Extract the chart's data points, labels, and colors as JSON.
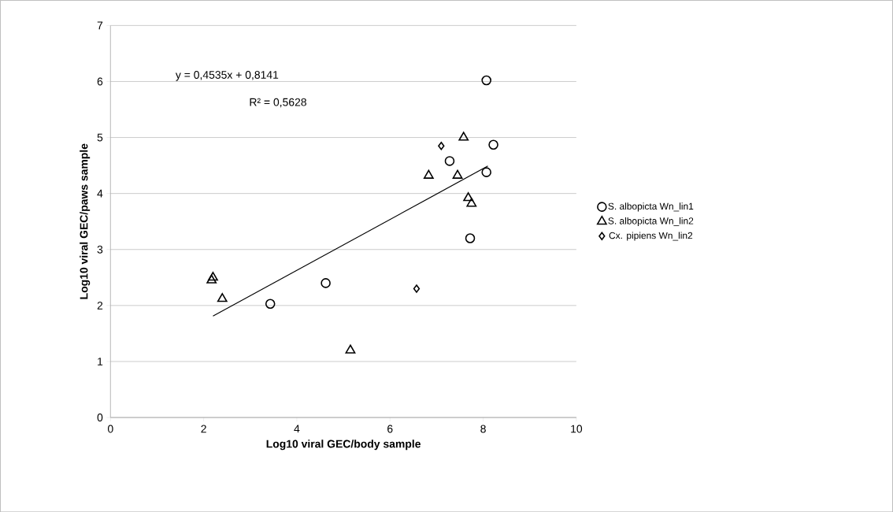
{
  "chart_data": {
    "type": "scatter",
    "xlabel": "Log10 viral GEC/body sample",
    "ylabel": "Log10 viral GEC/paws sample",
    "xlim": [
      0,
      10
    ],
    "ylim": [
      0,
      7
    ],
    "xticks": [
      0,
      2,
      4,
      6,
      8,
      10
    ],
    "yticks": [
      0,
      1,
      2,
      3,
      4,
      5,
      6,
      7
    ],
    "grid": "y",
    "legend": "right",
    "annotations": [
      "y = 0,4535x + 0,8141",
      "R² = 0,5628"
    ],
    "series": [
      {
        "name": "S. albopicta Wn_lin1",
        "color": "#000000",
        "marker": "circle",
        "x": [
          3.43,
          4.62,
          7.28,
          7.72,
          8.07,
          8.22,
          8.07
        ],
        "values": [
          2.03,
          2.4,
          4.58,
          3.2,
          4.38,
          4.87,
          6.02
        ]
      },
      {
        "name": "S. albopicta Wn_lin2",
        "color": "#000000",
        "marker": "triangle",
        "x": [
          2.17,
          2.2,
          2.4,
          5.15,
          6.83,
          7.45,
          7.58,
          7.68,
          7.75
        ],
        "values": [
          2.45,
          2.5,
          2.12,
          1.2,
          4.32,
          4.32,
          5.0,
          3.92,
          3.82
        ]
      },
      {
        "name": "Cx. pipiens Wn_lin2",
        "color": "#000000",
        "marker": "diamond",
        "x": [
          6.57,
          7.1
        ],
        "values": [
          2.3,
          4.85
        ]
      },
      {
        "type": "line",
        "color": "#000000",
        "marker": "none",
        "x": [
          2.2,
          8.1
        ],
        "values": [
          1.81,
          4.49
        ]
      }
    ]
  }
}
